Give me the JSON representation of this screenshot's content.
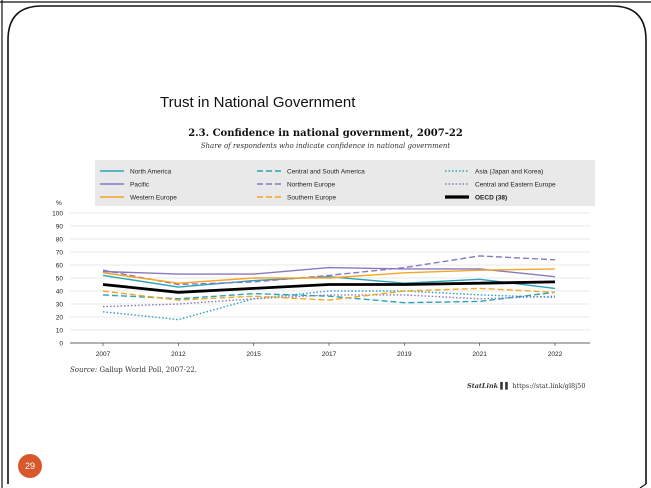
{
  "slide": {
    "title": "Trust in National Government",
    "page_number": "29",
    "accent_color": "#d9582b"
  },
  "figure": {
    "title": "2.3. Confidence in national government, 2007-22",
    "subtitle": "Share of respondents who indicate confidence in national government",
    "source_label": "Source:",
    "source_text": "Gallup World Poll, 2007-22.",
    "statlink_brand": "StatLink",
    "statlink_url": "https://stat.link/gl8j50"
  },
  "chart_data": {
    "type": "line",
    "ylabel": "%",
    "ylim": [
      0,
      100
    ],
    "yticks": [
      0,
      10,
      20,
      30,
      40,
      50,
      60,
      70,
      80,
      90,
      100
    ],
    "categories": [
      "2007",
      "2012",
      "2015",
      "2017",
      "2019",
      "2021",
      "2022"
    ],
    "grid": true,
    "legend_position": "top",
    "series": [
      {
        "name": "North America",
        "color": "#2aa3b8",
        "dash": "solid",
        "values": [
          52,
          43,
          48,
          51,
          46,
          49,
          42
        ]
      },
      {
        "name": "Central and South America",
        "color": "#2aa3b8",
        "dash": "dashed",
        "values": [
          37,
          34,
          38,
          36,
          31,
          32,
          39
        ]
      },
      {
        "name": "Asia (Japan and Korea)",
        "color": "#2aa3b8",
        "dash": "dotted",
        "values": [
          24,
          18,
          34,
          40,
          40,
          37,
          35
        ]
      },
      {
        "name": "Pacific",
        "color": "#8b78c0",
        "dash": "solid",
        "values": [
          55,
          53,
          53,
          58,
          57,
          57,
          51
        ]
      },
      {
        "name": "Northern Europe",
        "color": "#8b78c0",
        "dash": "dashed",
        "values": [
          56,
          45,
          47,
          52,
          58,
          67,
          64
        ]
      },
      {
        "name": "Central and Eastern Europe",
        "color": "#8b78c0",
        "dash": "dotted",
        "values": [
          28,
          30,
          34,
          37,
          37,
          34,
          36
        ]
      },
      {
        "name": "Western Europe",
        "color": "#f5a623",
        "dash": "solid",
        "values": [
          54,
          46,
          50,
          50,
          54,
          56,
          57
        ]
      },
      {
        "name": "Southern Europe",
        "color": "#f5a623",
        "dash": "dashed",
        "values": [
          40,
          33,
          36,
          33,
          40,
          42,
          39
        ]
      },
      {
        "name": "OECD (38)",
        "color": "#000000",
        "dash": "solid",
        "bold": true,
        "values": [
          45,
          39,
          42,
          45,
          45,
          46,
          47
        ]
      }
    ]
  }
}
